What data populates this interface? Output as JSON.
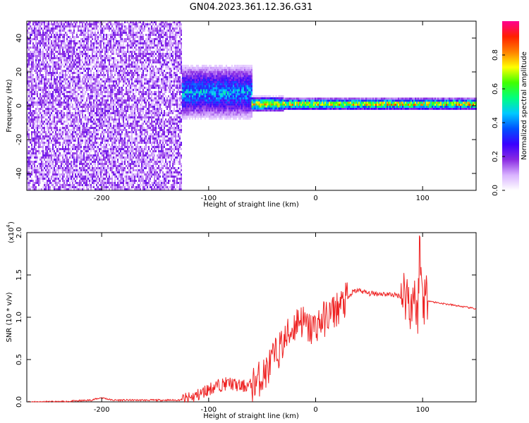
{
  "title": "GN04.2023.361.12.36.G31",
  "chart_data": [
    {
      "type": "heatmap",
      "xlabel": "Height of straight line (km)",
      "ylabel": "Frequency (Hz)",
      "xlim": [
        -270,
        150
      ],
      "ylim": [
        -50,
        50
      ],
      "xticks": [
        -200,
        -100,
        0,
        100
      ],
      "yticks": [
        -40,
        -20,
        0,
        20,
        40
      ],
      "colorbar": {
        "label": "Normalized spectral amplitude",
        "range": [
          0,
          1
        ],
        "ticks": [
          0.0,
          0.2,
          0.4,
          0.6,
          0.8
        ],
        "colormap": [
          "#ffffff",
          "#d9b3ff",
          "#8a2be2",
          "#3a00ff",
          "#0050ff",
          "#00c8ff",
          "#00ff80",
          "#40ff00",
          "#ffff00",
          "#ff8000",
          "#ff2000",
          "#ff0090"
        ]
      },
      "regions": [
        {
          "x": [
            -270,
            -125
          ],
          "description": "broadband noise"
        },
        {
          "x": [
            -125,
            -60
          ],
          "center_freq": 8,
          "spread": 18
        },
        {
          "x": [
            -60,
            -30
          ],
          "center_freq": 1,
          "spread": 5
        },
        {
          "x": [
            -30,
            150
          ],
          "center_freq": 1,
          "spread": 4
        }
      ]
    },
    {
      "type": "line",
      "xlabel": "Height of straight line (km)",
      "ylabel": "SNR (10 * v/v)",
      "y_multiplier_label": "(x10",
      "y_multiplier_exp": "4",
      "xlim": [
        -270,
        150
      ],
      "ylim": [
        0,
        2.0
      ],
      "xticks": [
        -200,
        -100,
        0,
        100
      ],
      "yticks": [
        0.0,
        0.5,
        1.0,
        1.5,
        2.0
      ],
      "color": "#ee2222",
      "series": [
        {
          "x": [
            -270,
            -240,
            -210,
            -200,
            -190,
            -170,
            -150,
            -130,
            -120,
            -110,
            -100,
            -90,
            -80,
            -70,
            -60,
            -55,
            -50,
            -45,
            -40,
            -35,
            -30,
            -25,
            -20,
            -15,
            -10,
            -5,
            0,
            5,
            10,
            15,
            20,
            25,
            30,
            35,
            40,
            50,
            60,
            70,
            80,
            85,
            90,
            92,
            95,
            97,
            100,
            105,
            110,
            120,
            130,
            140,
            150
          ],
          "values": [
            0.0,
            0.0,
            0.02,
            0.05,
            0.02,
            0.02,
            0.02,
            0.02,
            0.03,
            0.08,
            0.15,
            0.2,
            0.22,
            0.18,
            0.2,
            0.25,
            0.3,
            0.38,
            0.5,
            0.6,
            0.7,
            0.8,
            0.9,
            1.0,
            0.9,
            0.85,
            0.9,
            0.95,
            1.0,
            1.05,
            1.1,
            1.15,
            1.22,
            1.3,
            1.32,
            1.28,
            1.28,
            1.27,
            1.25,
            1.3,
            1.1,
            1.4,
            0.9,
            1.8,
            1.26,
            1.2,
            1.18,
            1.16,
            1.14,
            1.12,
            1.1
          ]
        }
      ]
    }
  ]
}
